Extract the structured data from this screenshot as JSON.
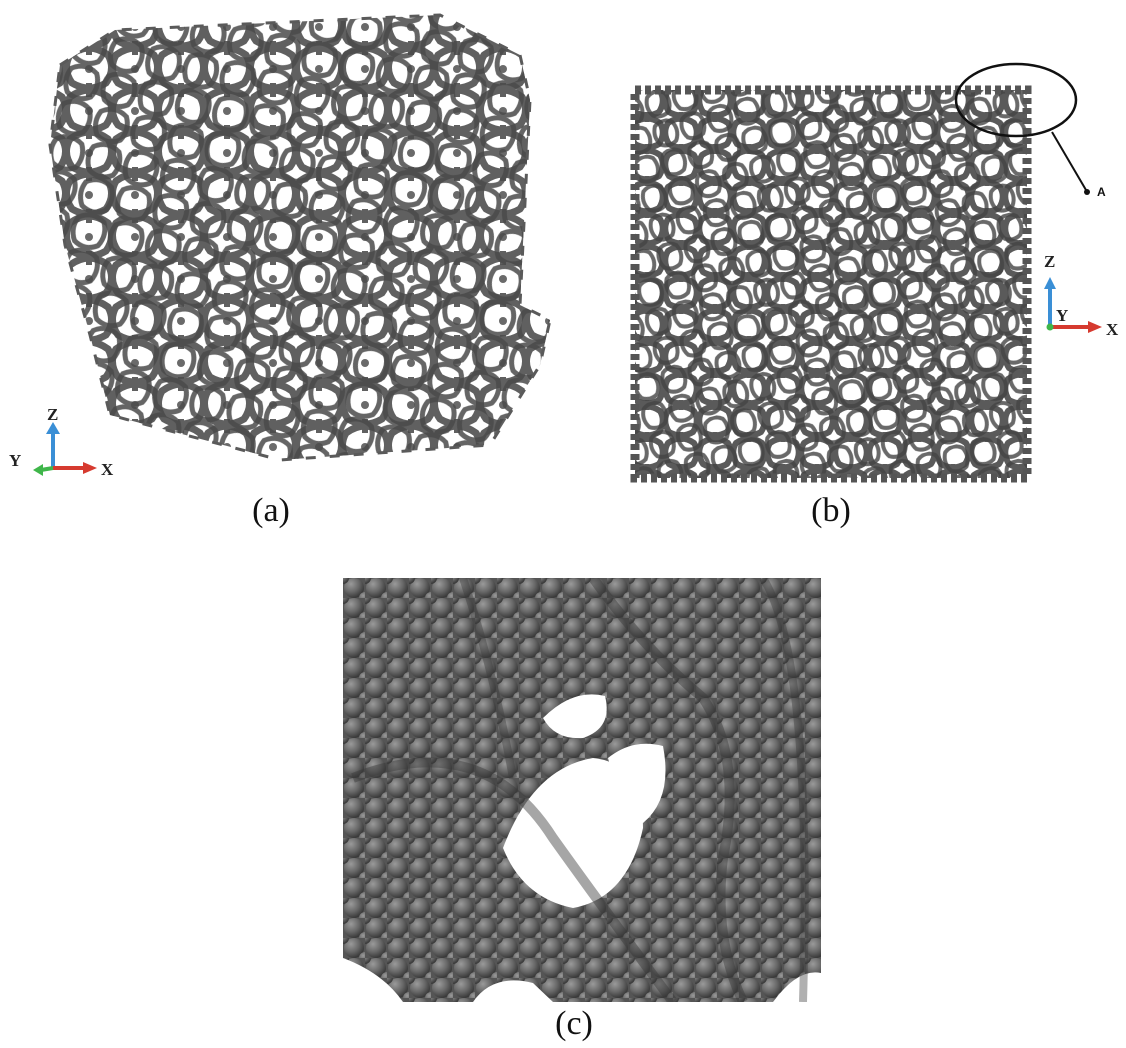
{
  "panels": [
    {
      "id": "a",
      "caption": "(a)"
    },
    {
      "id": "b",
      "caption": "(b)"
    },
    {
      "id": "c",
      "caption": "(c)"
    }
  ],
  "triad_a": {
    "z": "Z",
    "y": "Y",
    "x": "X"
  },
  "triad_b": {
    "z": "Z",
    "y": "Y",
    "x": "X"
  },
  "callout": {
    "label": "A"
  },
  "colors": {
    "foam": "#5f5f5f",
    "foam_dark": "#3e3e3e",
    "axis_x": "#d63a2f",
    "axis_y": "#3fb64a",
    "axis_z": "#3a8fd6"
  }
}
